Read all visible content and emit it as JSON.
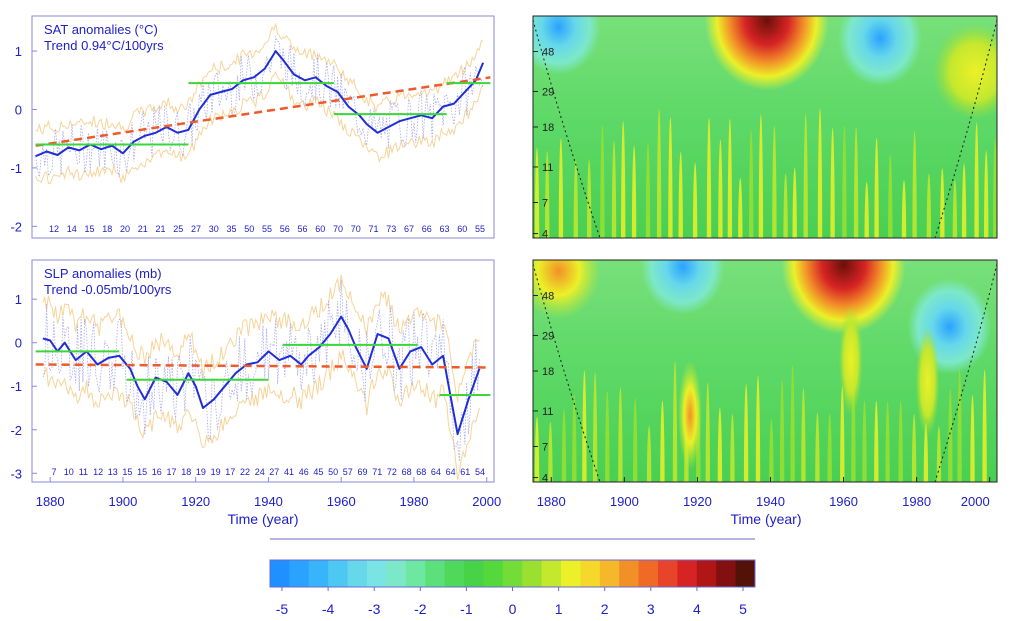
{
  "chart_data": [
    {
      "type": "line",
      "title": "SAT anomalies (°C)",
      "subtitle": "Trend 0.94°C/100yrs",
      "xlabel": "",
      "ylabel": "",
      "xlim": [
        1875,
        2002
      ],
      "ylim": [
        -2.2,
        1.6
      ],
      "yticks": [
        -2,
        -1,
        0,
        1
      ],
      "xticks": [
        1880,
        1900,
        1920,
        1940,
        1960,
        1980,
        2000
      ],
      "show_xtick_labels": true,
      "period_lengths": [
        "12",
        "14",
        "15",
        "18",
        "20",
        "21",
        "21",
        "25",
        "27",
        "30",
        "35",
        "50",
        "55",
        "56",
        "56",
        "60",
        "70",
        "70",
        "71",
        "73",
        "67",
        "66",
        "63",
        "60",
        "55"
      ],
      "series": [
        {
          "role": "smoothed",
          "color": "#1f2fd6",
          "x": [
            1876,
            1879,
            1882,
            1885,
            1888,
            1891,
            1894,
            1897,
            1900,
            1903,
            1906,
            1909,
            1912,
            1915,
            1918,
            1921,
            1924,
            1927,
            1930,
            1933,
            1936,
            1939,
            1942,
            1944,
            1947,
            1950,
            1953,
            1956,
            1959,
            1962,
            1965,
            1967,
            1970,
            1973,
            1976,
            1979,
            1982,
            1985,
            1988,
            1991,
            1994,
            1997,
            1999
          ],
          "y": [
            -0.8,
            -0.72,
            -0.78,
            -0.65,
            -0.7,
            -0.6,
            -0.68,
            -0.62,
            -0.75,
            -0.55,
            -0.45,
            -0.4,
            -0.3,
            -0.4,
            -0.35,
            0.0,
            0.25,
            0.3,
            0.35,
            0.5,
            0.55,
            0.7,
            1.0,
            0.85,
            0.6,
            0.5,
            0.55,
            0.4,
            0.3,
            0.05,
            -0.1,
            -0.25,
            -0.4,
            -0.3,
            -0.2,
            -0.15,
            -0.1,
            -0.15,
            0.05,
            0.1,
            0.3,
            0.5,
            0.8
          ]
        },
        {
          "role": "trend",
          "color": "#ee5a2a",
          "x": [
            1876,
            2001
          ],
          "y": [
            -0.62,
            0.55
          ]
        },
        {
          "role": "regime-mean",
          "color": "#3ad63a",
          "segments": [
            {
              "x": [
                1876,
                1918
              ],
              "y": [
                -0.6,
                -0.6
              ]
            },
            {
              "x": [
                1918,
                1958
              ],
              "y": [
                0.45,
                0.45
              ]
            },
            {
              "x": [
                1958,
                1989
              ],
              "y": [
                -0.08,
                -0.08
              ]
            },
            {
              "x": [
                1989,
                2001
              ],
              "y": [
                0.45,
                0.45
              ]
            }
          ]
        }
      ]
    },
    {
      "type": "line",
      "title": "SLP anomalies (mb)",
      "subtitle": "Trend -0.05mb/100yrs",
      "xlabel": "Time (year)",
      "ylabel": "",
      "xlim": [
        1875,
        2002
      ],
      "ylim": [
        -3.2,
        1.9
      ],
      "yticks": [
        -3,
        -2,
        -1,
        0,
        1
      ],
      "xticks": [
        1880,
        1900,
        1920,
        1940,
        1960,
        1980,
        2000
      ],
      "show_xtick_labels": true,
      "period_lengths": [
        "7",
        "10",
        "11",
        "12",
        "13",
        "15",
        "15",
        "16",
        "17",
        "18",
        "19",
        "19",
        "17",
        "22",
        "24",
        "27",
        "41",
        "46",
        "45",
        "50",
        "57",
        "69",
        "71",
        "72",
        "68",
        "68",
        "64",
        "64",
        "61",
        "54"
      ],
      "series": [
        {
          "role": "smoothed",
          "color": "#1f2fd6",
          "x": [
            1878,
            1880,
            1882,
            1884,
            1887,
            1890,
            1893,
            1896,
            1899,
            1902,
            1904,
            1906,
            1909,
            1912,
            1915,
            1918,
            1920,
            1922,
            1925,
            1928,
            1931,
            1934,
            1937,
            1940,
            1943,
            1946,
            1949,
            1951,
            1954,
            1957,
            1960,
            1962,
            1964,
            1967,
            1970,
            1973,
            1976,
            1979,
            1982,
            1985,
            1988,
            1990,
            1992,
            1995,
            1998
          ],
          "y": [
            0.1,
            0.05,
            -0.2,
            0.0,
            -0.4,
            -0.2,
            -0.5,
            -0.35,
            -0.3,
            -0.6,
            -1.0,
            -1.3,
            -0.8,
            -0.9,
            -1.2,
            -0.7,
            -1.0,
            -1.5,
            -1.3,
            -1.0,
            -0.7,
            -0.5,
            -0.45,
            -0.2,
            -0.4,
            -0.3,
            -0.5,
            -0.3,
            -0.1,
            0.2,
            0.6,
            0.3,
            -0.1,
            -0.6,
            0.2,
            0.1,
            -0.6,
            -0.2,
            -0.1,
            -0.5,
            -0.3,
            -1.2,
            -2.1,
            -1.3,
            -0.6
          ]
        },
        {
          "role": "trend",
          "color": "#ee5a2a",
          "x": [
            1876,
            2001
          ],
          "y": [
            -0.5,
            -0.57
          ]
        },
        {
          "role": "regime-mean",
          "color": "#3ad63a",
          "segments": [
            {
              "x": [
                1876,
                1899
              ],
              "y": [
                -0.2,
                -0.2
              ]
            },
            {
              "x": [
                1901,
                1940
              ],
              "y": [
                -0.85,
                -0.85
              ]
            },
            {
              "x": [
                1944,
                1981
              ],
              "y": [
                -0.05,
                -0.05
              ]
            },
            {
              "x": [
                1987,
                2001
              ],
              "y": [
                -1.2,
                -1.2
              ]
            }
          ]
        }
      ]
    },
    {
      "type": "heatmap",
      "yticks": [
        "48",
        "29",
        "18",
        "11",
        "7",
        "4"
      ],
      "xlim": [
        1875,
        2002
      ],
      "show_xtick_labels": false,
      "blobs": [
        {
          "x": 1939,
          "period_frac": 0.02,
          "level": 5
        },
        {
          "x": 1882,
          "period_frac": 0.05,
          "level": -2
        },
        {
          "x": 1970,
          "period_frac": 0.1,
          "level": -2
        },
        {
          "x": 1996,
          "period_frac": 0.25,
          "level": 2
        }
      ]
    },
    {
      "type": "heatmap",
      "yticks": [
        "48",
        "29",
        "18",
        "11",
        "7",
        "4"
      ],
      "xlim": [
        1875,
        2002
      ],
      "xticks": [
        1880,
        1900,
        1920,
        1940,
        1960,
        1980,
        2000
      ],
      "xlabel": "Time (year)",
      "show_xtick_labels": true,
      "blobs": [
        {
          "x": 1960,
          "period_frac": 0.02,
          "level": 5
        },
        {
          "x": 1882,
          "period_frac": 0.05,
          "level": 3
        },
        {
          "x": 1916,
          "period_frac": 0.03,
          "level": -2
        },
        {
          "x": 1989,
          "period_frac": 0.3,
          "level": -2
        },
        {
          "x": 1918,
          "period_frac": 0.7,
          "level": 3
        },
        {
          "x": 1962,
          "period_frac": 0.45,
          "level": 2
        },
        {
          "x": 1983,
          "period_frac": 0.55,
          "level": 2
        }
      ]
    }
  ],
  "colorbar": {
    "ticks": [
      "-5",
      "-4",
      "-3",
      "-2",
      "-1",
      "0",
      "1",
      "2",
      "3",
      "4",
      "5"
    ],
    "colors": [
      "#1e90ff",
      "#2aa2ff",
      "#38b4fb",
      "#4cc8f2",
      "#66d8ea",
      "#7ae4e4",
      "#7de8c8",
      "#6ee8a0",
      "#5de07a",
      "#4fd85a",
      "#47d247",
      "#55d83c",
      "#74dc36",
      "#9ae030",
      "#c4e82e",
      "#ecf028",
      "#f6d82a",
      "#f4b82a",
      "#f29028",
      "#ee6a26",
      "#e8442a",
      "#d62424",
      "#b01616",
      "#821010",
      "#521208"
    ]
  }
}
